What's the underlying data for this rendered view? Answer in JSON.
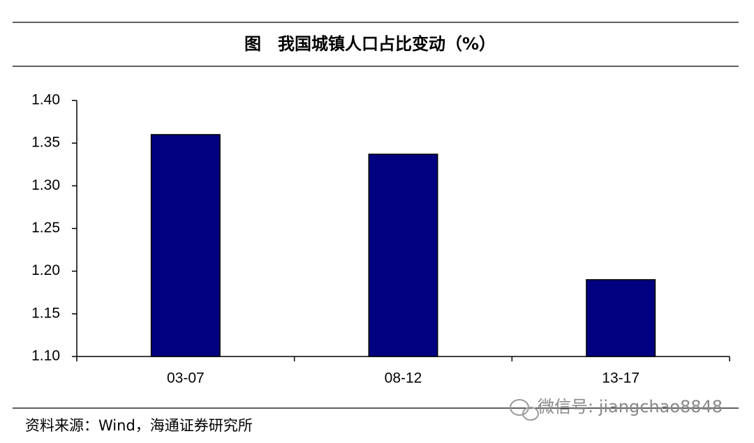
{
  "chart_data": {
    "type": "bar",
    "title": "图　我国城镇人口占比变动（%）",
    "categories": [
      "03-07",
      "08-12",
      "13-17"
    ],
    "values": [
      1.36,
      1.337,
      1.19
    ],
    "color": "#000080",
    "ylim": [
      1.1,
      1.4
    ],
    "yticks": [
      {
        "value": 1.1,
        "label": "1.10"
      },
      {
        "value": 1.15,
        "label": "1.15"
      },
      {
        "value": 1.2,
        "label": "1.20"
      },
      {
        "value": 1.25,
        "label": "1.25"
      },
      {
        "value": 1.3,
        "label": "1.30"
      },
      {
        "value": 1.35,
        "label": "1.35"
      },
      {
        "value": 1.4,
        "label": "1.40"
      }
    ],
    "grid": false,
    "source": "资料来源：Wind，海通证券研究所",
    "watermark": "微信号: jiangchao8848"
  }
}
